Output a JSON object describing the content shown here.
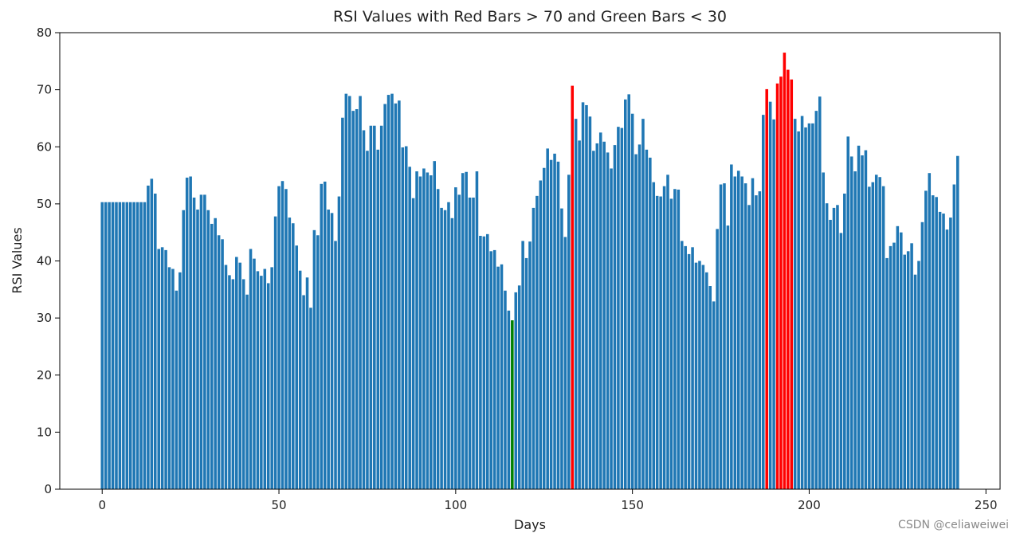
{
  "chart_data": {
    "type": "bar",
    "title": "RSI Values with Red Bars > 70 and Green Bars < 30",
    "xlabel": "Days",
    "ylabel": "RSI Values",
    "xlim": [
      -12,
      254
    ],
    "ylim": [
      0,
      80
    ],
    "x_ticks": [
      0,
      50,
      100,
      150,
      200,
      250
    ],
    "y_ticks": [
      0,
      10,
      20,
      30,
      40,
      50,
      60,
      70,
      80
    ],
    "grid": false,
    "thresholds": {
      "upper": 70,
      "lower": 30
    },
    "colors": {
      "default": "#1f77b4",
      "above_upper": "#ff0000",
      "below_lower": "#008000"
    },
    "x": [
      0,
      1,
      2,
      3,
      4,
      5,
      6,
      7,
      8,
      9,
      10,
      11,
      12,
      13,
      14,
      15,
      16,
      17,
      18,
      19,
      20,
      21,
      22,
      23,
      24,
      25,
      26,
      27,
      28,
      29,
      30,
      31,
      32,
      33,
      34,
      35,
      36,
      37,
      38,
      39,
      40,
      41,
      42,
      43,
      44,
      45,
      46,
      47,
      48,
      49,
      50,
      51,
      52,
      53,
      54,
      55,
      56,
      57,
      58,
      59,
      60,
      61,
      62,
      63,
      64,
      65,
      66,
      67,
      68,
      69,
      70,
      71,
      72,
      73,
      74,
      75,
      76,
      77,
      78,
      79,
      80,
      81,
      82,
      83,
      84,
      85,
      86,
      87,
      88,
      89,
      90,
      91,
      92,
      93,
      94,
      95,
      96,
      97,
      98,
      99,
      100,
      101,
      102,
      103,
      104,
      105,
      106,
      107,
      108,
      109,
      110,
      111,
      112,
      113,
      114,
      115,
      116,
      117,
      118,
      119,
      120,
      121,
      122,
      123,
      124,
      125,
      126,
      127,
      128,
      129,
      130,
      131,
      132,
      133,
      134,
      135,
      136,
      137,
      138,
      139,
      140,
      141,
      142,
      143,
      144,
      145,
      146,
      147,
      148,
      149,
      150,
      151,
      152,
      153,
      154,
      155,
      156,
      157,
      158,
      159,
      160,
      161,
      162,
      163,
      164,
      165,
      166,
      167,
      168,
      169,
      170,
      171,
      172,
      173,
      174,
      175,
      176,
      177,
      178,
      179,
      180,
      181,
      182,
      183,
      184,
      185,
      186,
      187,
      188,
      189,
      190,
      191,
      192,
      193,
      194,
      195,
      196,
      197,
      198,
      199,
      200,
      201,
      202,
      203,
      204,
      205,
      206,
      207,
      208,
      209,
      210,
      211,
      212,
      213,
      214,
      215,
      216,
      217,
      218,
      219,
      220,
      221,
      222,
      223,
      224,
      225,
      226,
      227,
      228,
      229,
      230,
      231,
      232,
      233,
      234,
      235,
      236,
      237,
      238,
      239,
      240,
      241,
      242
    ],
    "values": [
      50.3,
      50.3,
      50.3,
      50.3,
      50.3,
      50.3,
      50.3,
      50.3,
      50.3,
      50.3,
      50.3,
      50.3,
      50.3,
      53.2,
      54.4,
      51.8,
      42.1,
      42.4,
      41.9,
      38.9,
      38.6,
      34.8,
      38.0,
      48.9,
      54.6,
      54.8,
      51.1,
      49.0,
      51.6,
      51.6,
      48.9,
      46.5,
      47.5,
      44.5,
      43.8,
      39.3,
      37.5,
      36.8,
      40.7,
      39.7,
      36.8,
      34.1,
      42.1,
      40.4,
      38.2,
      37.4,
      38.6,
      36.1,
      38.9,
      47.8,
      53.1,
      54.0,
      52.6,
      47.6,
      46.6,
      42.7,
      38.3,
      34.0,
      37.1,
      31.8,
      45.4,
      44.5,
      53.5,
      53.9,
      49.0,
      48.4,
      43.5,
      51.3,
      65.1,
      69.3,
      68.9,
      66.3,
      66.6,
      68.9,
      62.9,
      59.3,
      63.7,
      63.7,
      59.5,
      63.7,
      67.5,
      69.1,
      69.3,
      67.6,
      68.1,
      59.9,
      60.1,
      56.5,
      51.0,
      55.7,
      54.8,
      56.2,
      55.5,
      55.0,
      57.5,
      52.6,
      49.3,
      48.9,
      50.3,
      47.5,
      52.9,
      51.6,
      55.4,
      55.6,
      51.1,
      51.1,
      55.7,
      44.4,
      44.3,
      44.7,
      41.7,
      41.9,
      39.0,
      39.4,
      34.8,
      31.3,
      29.6,
      34.5,
      35.7,
      43.5,
      40.5,
      43.4,
      49.3,
      51.4,
      54.1,
      56.3,
      59.7,
      57.7,
      58.8,
      57.4,
      49.2,
      44.2,
      55.1,
      70.7,
      64.9,
      61.1,
      67.8,
      67.3,
      65.3,
      59.3,
      60.6,
      62.5,
      60.9,
      59.0,
      56.2,
      60.3,
      63.5,
      63.3,
      68.3,
      69.2,
      65.8,
      58.7,
      60.4,
      64.9,
      59.5,
      58.1,
      53.8,
      51.4,
      51.3,
      53.1,
      55.1,
      50.9,
      52.6,
      52.5,
      43.5,
      42.6,
      41.2,
      42.4,
      39.7,
      40.0,
      39.3,
      38.0,
      35.6,
      32.9,
      45.6,
      53.4,
      53.6,
      46.2,
      56.9,
      54.8,
      55.8,
      54.8,
      53.6,
      49.8,
      54.5,
      51.5,
      52.2,
      65.6,
      70.1,
      67.9,
      64.8,
      71.1,
      72.3,
      76.5,
      73.5,
      71.8,
      64.9,
      62.7,
      65.4,
      63.4,
      64.1,
      64.1,
      66.3,
      68.8,
      55.5,
      50.1,
      47.2,
      49.3,
      49.8,
      44.9,
      51.8,
      61.8,
      58.3,
      55.7,
      60.2,
      58.5,
      59.4,
      53.0,
      53.8,
      55.1,
      54.7,
      53.1,
      40.5,
      42.6,
      43.2,
      46.1,
      45.0,
      41.1,
      41.7,
      43.1,
      37.6,
      40.0,
      46.8,
      52.3,
      55.4,
      51.5,
      51.2,
      48.6,
      48.3,
      45.5,
      47.6,
      53.4,
      58.4
    ]
  },
  "watermark": "CSDN @celiaweiwei"
}
